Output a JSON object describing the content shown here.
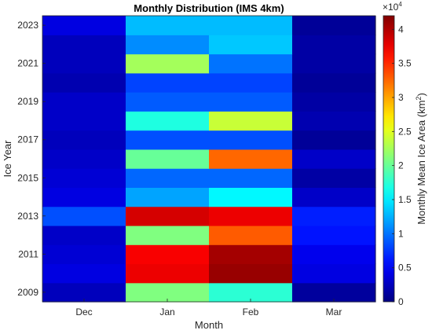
{
  "chart_data": {
    "type": "heatmap",
    "title": "Monthly Distribution (IMS 4km)",
    "xlabel": "Month",
    "ylabel": "Ice Year",
    "x_categories": [
      "Dec",
      "Jan",
      "Feb",
      "Mar"
    ],
    "y_categories": [
      2009,
      2010,
      2011,
      2012,
      2013,
      2014,
      2015,
      2016,
      2017,
      2018,
      2019,
      2020,
      2021,
      2022,
      2023
    ],
    "y_tick_labels": [
      "2009",
      "2011",
      "2013",
      "2015",
      "2017",
      "2019",
      "2021",
      "2023"
    ],
    "values": [
      [
        2500,
        21000,
        17500,
        1200
      ],
      [
        4000,
        37500,
        41000,
        4000
      ],
      [
        3500,
        37000,
        40500,
        4500
      ],
      [
        3000,
        21000,
        33000,
        6000
      ],
      [
        8500,
        38500,
        37500,
        6500
      ],
      [
        4000,
        12000,
        15500,
        3000
      ],
      [
        3500,
        9500,
        9500,
        1500
      ],
      [
        3000,
        20000,
        32500,
        3000
      ],
      [
        2500,
        8500,
        8500,
        1000
      ],
      [
        3000,
        17000,
        24000,
        2000
      ],
      [
        3000,
        9000,
        9000,
        1500
      ],
      [
        2000,
        8000,
        8000,
        1000
      ],
      [
        2500,
        22500,
        10000,
        1500
      ],
      [
        2500,
        11000,
        13500,
        1500
      ],
      [
        4000,
        13000,
        13000,
        1000
      ]
    ],
    "colorbar": {
      "label": "Monthly Mean Ice Area (km",
      "label_sup": "2",
      "label_end": ")",
      "scale_label": "×10",
      "scale_exp": "4",
      "range": [
        0,
        42000
      ],
      "ticks": [
        0,
        5000,
        10000,
        15000,
        20000,
        25000,
        30000,
        35000,
        40000
      ],
      "tick_labels": [
        "0",
        "0.5",
        "1",
        "1.5",
        "2",
        "2.5",
        "3",
        "3.5",
        "4"
      ],
      "colormap": "jet"
    }
  }
}
